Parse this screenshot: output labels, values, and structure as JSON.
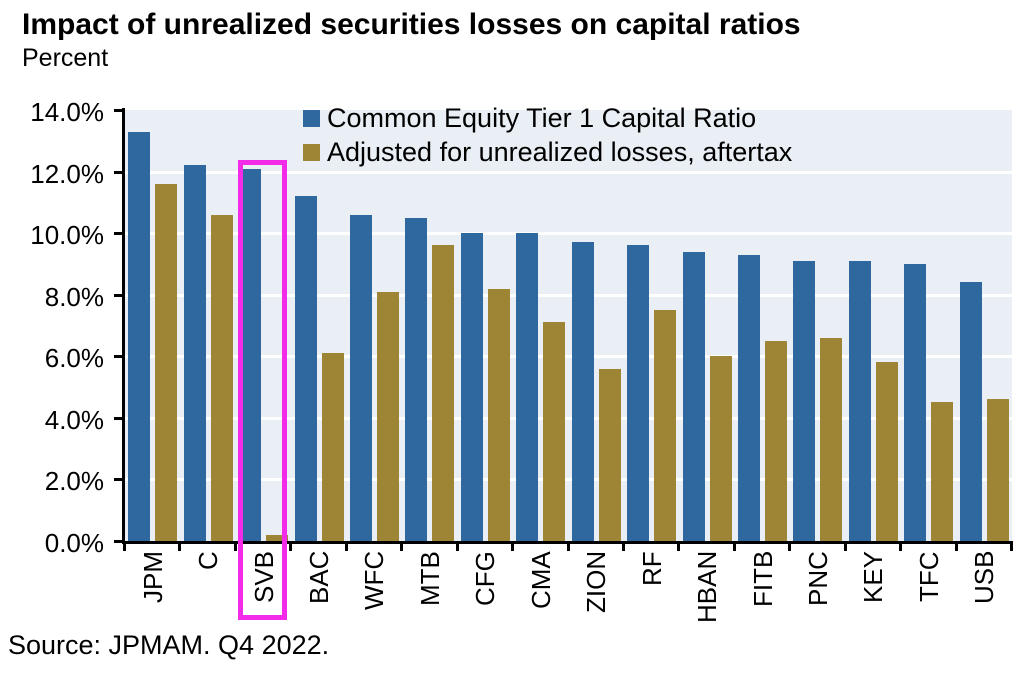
{
  "title": "Impact of unrealized securities losses on capital ratios",
  "subtitle": "Percent",
  "source": "Source: JPMAM. Q4 2022.",
  "colors": {
    "series_blue": "#2E689E",
    "series_gold": "#9E8536",
    "highlight": "#F32BE8",
    "plot_bg": "#E9EFF4",
    "grid": "#FFFFFF",
    "axis": "#000000"
  },
  "highlight": {
    "category": "SVB"
  },
  "chart_data": {
    "type": "bar",
    "title": "Impact of unrealized securities losses on capital ratios",
    "ylabel": "Percent",
    "ylim": [
      0,
      14
    ],
    "ytick_step": 2,
    "ytick_suffix": "%",
    "grid": true,
    "legend_position": "top-inside",
    "categories": [
      "JPM",
      "C",
      "SVB",
      "BAC",
      "WFC",
      "MTB",
      "CFG",
      "CMA",
      "ZION",
      "RF",
      "HBAN",
      "FITB",
      "PNC",
      "KEY",
      "TFC",
      "USB"
    ],
    "series": [
      {
        "name": "Common Equity Tier 1 Capital Ratio",
        "color_key": "series_blue",
        "values": [
          13.3,
          12.2,
          12.1,
          11.2,
          10.6,
          10.5,
          10.0,
          10.0,
          9.7,
          9.6,
          9.4,
          9.3,
          9.1,
          9.1,
          9.0,
          8.4
        ]
      },
      {
        "name": "Adjusted for unrealized losses, aftertax",
        "color_key": "series_gold",
        "values": [
          11.6,
          10.6,
          0.2,
          6.1,
          8.1,
          9.6,
          8.2,
          7.1,
          5.6,
          7.5,
          6.0,
          6.5,
          6.6,
          5.8,
          4.5,
          4.6
        ]
      }
    ]
  }
}
